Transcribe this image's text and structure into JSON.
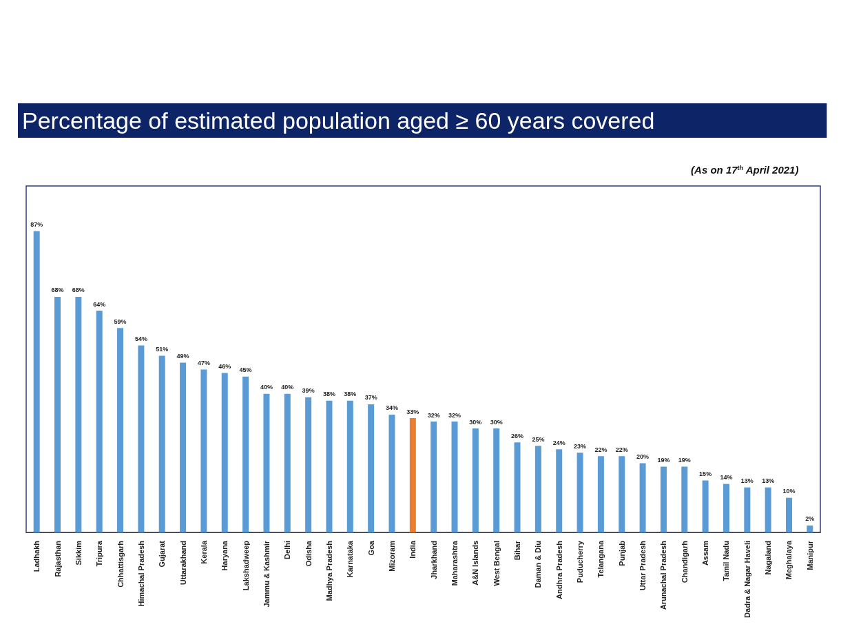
{
  "chart_data": {
    "type": "bar",
    "title": "Percentage of estimated population aged ≥ 60 years covered",
    "subtitle": "(As on 17$^{th}$ April 2021)",
    "categories": [
      "Ladhakh",
      "Rajasthan",
      "Sikkim",
      "Tripura",
      "Chhattisgarh",
      "Himachal Pradesh",
      "Gujarat",
      "Uttarakhand",
      "Kerala",
      "Haryana",
      "Lakshadweep",
      "Jammu & Kashmir",
      "Delhi",
      "Odisha",
      "Madhya Pradesh",
      "Karnataka",
      "Goa",
      "Mizoram",
      "India",
      "Jharkhand",
      "Maharashtra",
      "A&N Islands",
      "West Bengal",
      "Bihar",
      "Daman & Diu",
      "Andhra Pradesh",
      "Puducherry",
      "Telangana",
      "Punjab",
      "Uttar Pradesh",
      "Arunachal Pradesh",
      "Chandigarh",
      "Assam",
      "Tamil Nadu",
      "Dadra & Nagar Haveli",
      "Nagaland",
      "Meghalaya",
      "Manipur"
    ],
    "values": [
      87,
      68,
      68,
      64,
      59,
      54,
      51,
      49,
      47,
      46,
      45,
      40,
      40,
      39,
      38,
      38,
      37,
      34,
      33,
      32,
      32,
      30,
      30,
      26,
      25,
      24,
      23,
      22,
      22,
      20,
      19,
      19,
      15,
      14,
      13,
      13,
      10,
      2
    ],
    "value_labels": [
      "87%",
      "68%",
      "68%",
      "64%",
      "59%",
      "54%",
      "51%",
      "49%",
      "47%",
      "46%",
      "45%",
      "40%",
      "40%",
      "39%",
      "38%",
      "38%",
      "37%",
      "34%",
      "33%",
      "32%",
      "32%",
      "30%",
      "30%",
      "26%",
      "25%",
      "24%",
      "23%",
      "22%",
      "22%",
      "20%",
      "19%",
      "19%",
      "15%",
      "14%",
      "13%",
      "13%",
      "10%",
      "2%"
    ],
    "colors": [
      "#5b9bd5",
      "#5b9bd5",
      "#5b9bd5",
      "#5b9bd5",
      "#5b9bd5",
      "#5b9bd5",
      "#5b9bd5",
      "#5b9bd5",
      "#5b9bd5",
      "#5b9bd5",
      "#5b9bd5",
      "#5b9bd5",
      "#5b9bd5",
      "#5b9bd5",
      "#5b9bd5",
      "#5b9bd5",
      "#5b9bd5",
      "#5b9bd5",
      "#ed7d31",
      "#5b9bd5",
      "#5b9bd5",
      "#5b9bd5",
      "#5b9bd5",
      "#5b9bd5",
      "#5b9bd5",
      "#5b9bd5",
      "#5b9bd5",
      "#5b9bd5",
      "#5b9bd5",
      "#5b9bd5",
      "#5b9bd5",
      "#5b9bd5",
      "#5b9bd5",
      "#5b9bd5",
      "#5b9bd5",
      "#5b9bd5",
      "#5b9bd5",
      "#5b9bd5"
    ],
    "grid": false
  }
}
